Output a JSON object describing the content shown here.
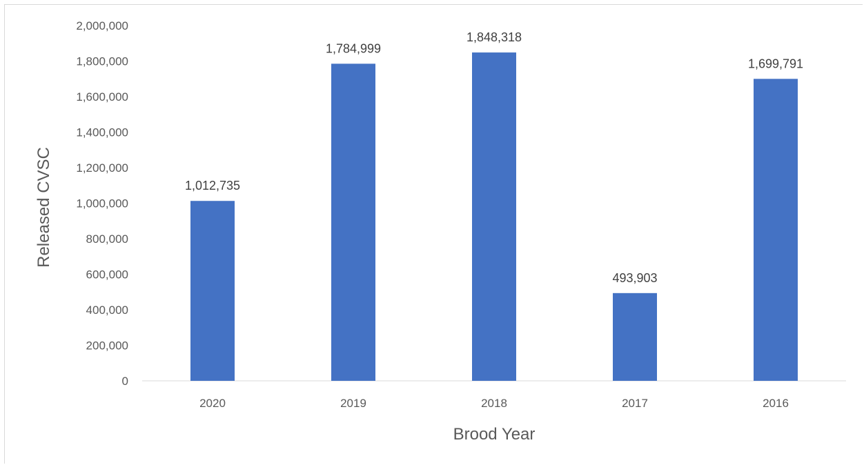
{
  "chart_data": {
    "type": "bar",
    "categories": [
      "2020",
      "2019",
      "2018",
      "2017",
      "2016"
    ],
    "values": [
      1012735,
      1784999,
      1848318,
      493903,
      1699791
    ],
    "value_labels": [
      "1,012,735",
      "1,784,999",
      "1,848,318",
      "493,903",
      "1,699,791"
    ],
    "title": "",
    "xlabel": "Brood Year",
    "ylabel": "Released CVSC",
    "ylim": [
      0,
      2000000
    ],
    "yticks": [
      0,
      200000,
      400000,
      600000,
      800000,
      1000000,
      1200000,
      1400000,
      1600000,
      1800000,
      2000000
    ],
    "ytick_labels": [
      "0",
      "200,000",
      "400,000",
      "600,000",
      "800,000",
      "1,000,000",
      "1,200,000",
      "1,400,000",
      "1,600,000",
      "1,800,000",
      "2,000,000"
    ],
    "grid": false,
    "legend": "none",
    "bar_color": "#4472C4"
  }
}
